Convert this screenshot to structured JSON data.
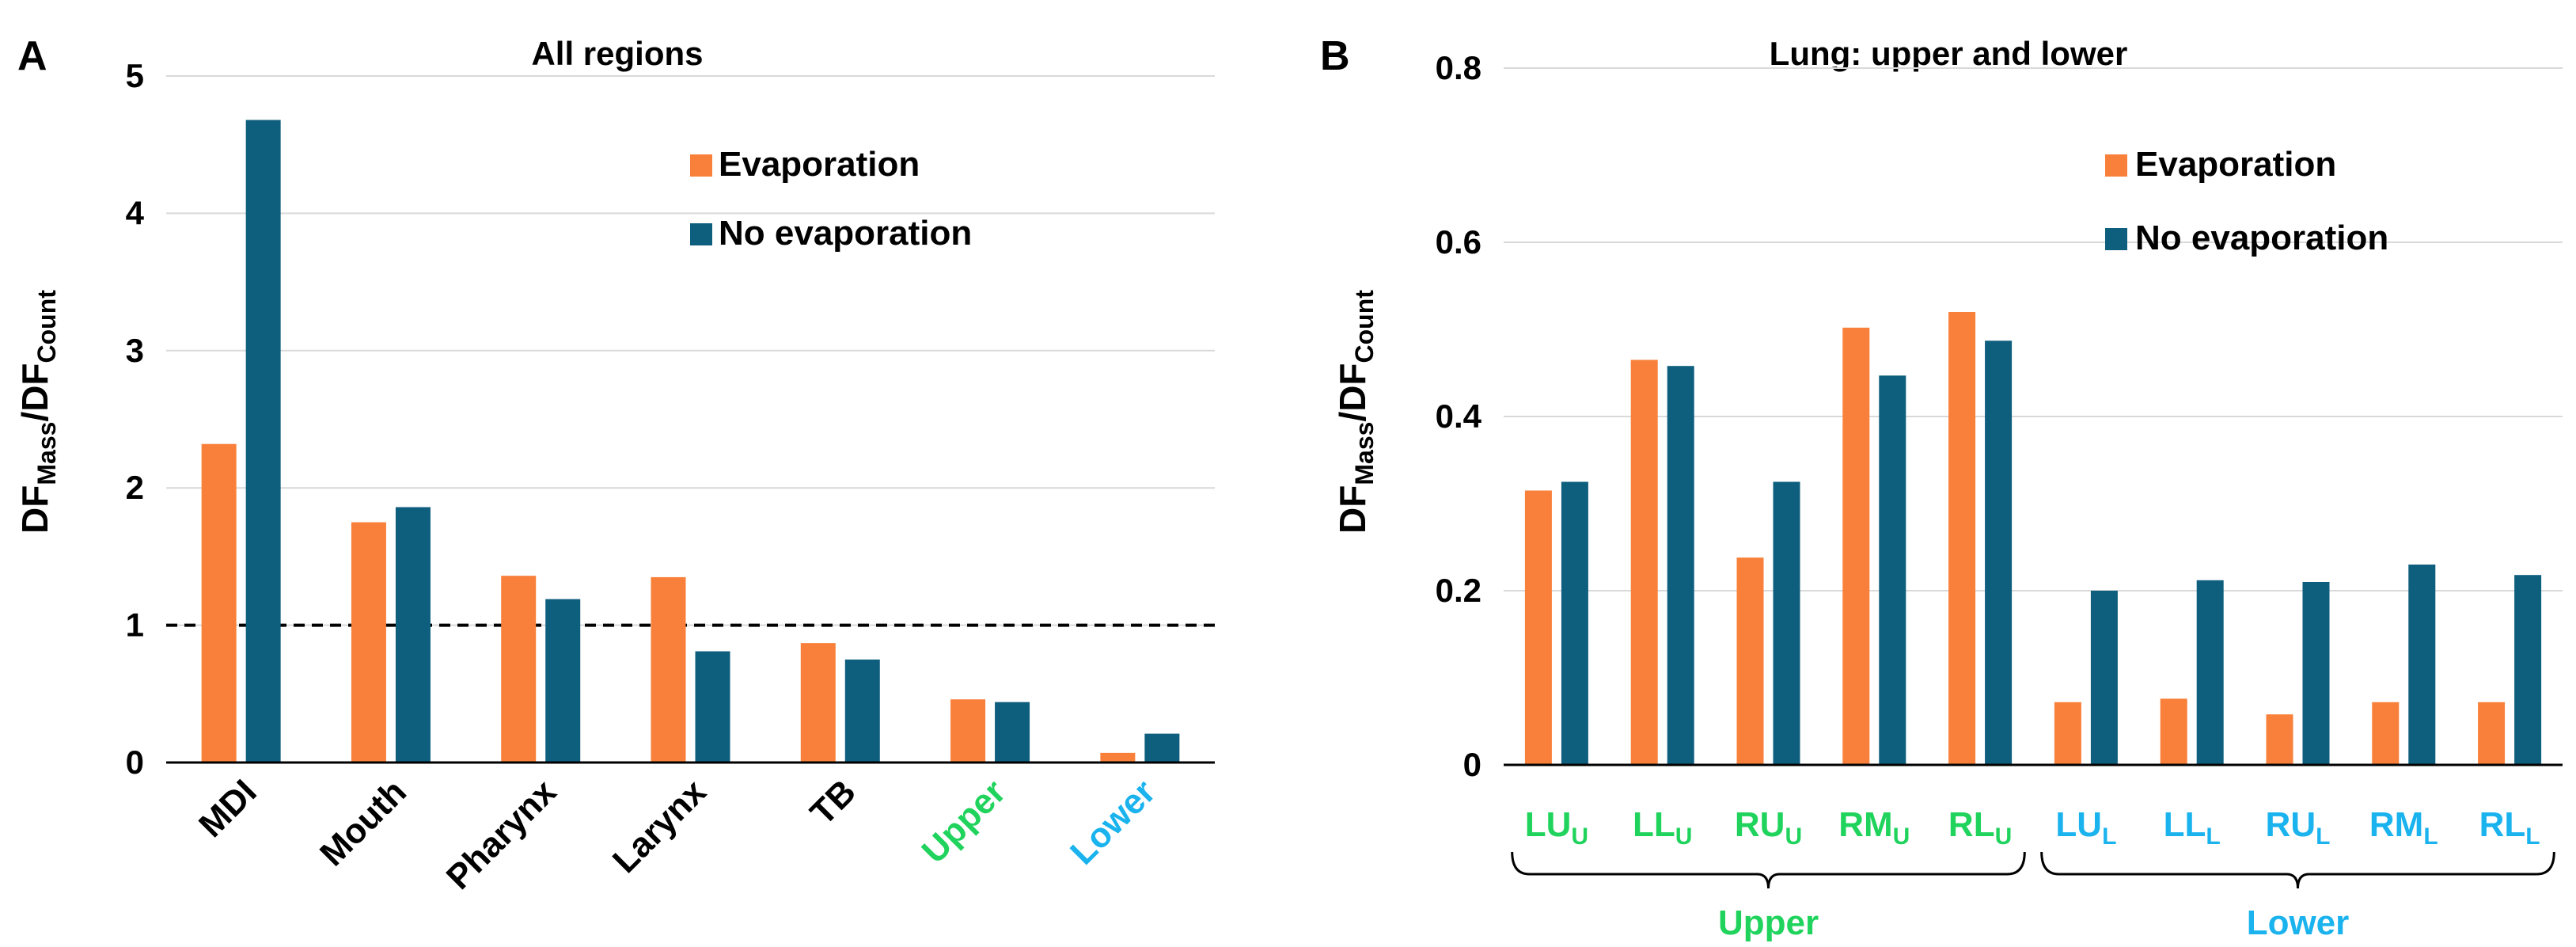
{
  "figure": {
    "panels": [
      "A",
      "B"
    ]
  },
  "colors": {
    "evaporation": "#f9803a",
    "no_evaporation": "#0e5e7e",
    "grid": "#d9d9d9",
    "upper_label": "#1fd35c",
    "lower_label": "#1ab3ee",
    "text": "#000000"
  },
  "chart_data": [
    {
      "panel": "A",
      "type": "bar",
      "title": "All regions",
      "ylabel_main": "DF",
      "ylabel_sub1": "Mass",
      "ylabel_sep": "/DF",
      "ylabel_sub2": "Count",
      "ylim": [
        0,
        5
      ],
      "yticks": [
        "0",
        "1",
        "2",
        "3",
        "4",
        "5"
      ],
      "grid": true,
      "reference_line": 1,
      "legend_position": "top-right",
      "categories": [
        "MDI",
        "Mouth",
        "Pharynx",
        "Larynx",
        "TB",
        "Upper",
        "Lower"
      ],
      "category_colors": [
        "text",
        "text",
        "text",
        "text",
        "text",
        "upper_label",
        "lower_label"
      ],
      "series": [
        {
          "name": "Evaporation",
          "values": [
            2.32,
            1.75,
            1.36,
            1.35,
            0.87,
            0.46,
            0.07
          ]
        },
        {
          "name": "No evaporation",
          "values": [
            4.68,
            1.86,
            1.19,
            0.81,
            0.75,
            0.44,
            0.21
          ]
        }
      ]
    },
    {
      "panel": "B",
      "type": "bar",
      "title": "Lung: upper and lower",
      "ylabel_main": "DF",
      "ylabel_sub1": "Mass",
      "ylabel_sep": "/DF",
      "ylabel_sub2": "Count",
      "ylim": [
        0,
        0.8
      ],
      "yticks": [
        "0",
        "0.2",
        "0.4",
        "0.6",
        "0.8"
      ],
      "grid": true,
      "legend_position": "top-right",
      "categories": [
        {
          "base": "LU",
          "sub": "U"
        },
        {
          "base": "LL",
          "sub": "U"
        },
        {
          "base": "RU",
          "sub": "U"
        },
        {
          "base": "RM",
          "sub": "U"
        },
        {
          "base": "RL",
          "sub": "U"
        },
        {
          "base": "LU",
          "sub": "L"
        },
        {
          "base": "LL",
          "sub": "L"
        },
        {
          "base": "RU",
          "sub": "L"
        },
        {
          "base": "RM",
          "sub": "L"
        },
        {
          "base": "RL",
          "sub": "L"
        }
      ],
      "category_colors": [
        "upper_label",
        "upper_label",
        "upper_label",
        "upper_label",
        "upper_label",
        "lower_label",
        "lower_label",
        "lower_label",
        "lower_label",
        "lower_label"
      ],
      "groups": [
        {
          "label": "Upper",
          "from": 0,
          "to": 4,
          "color": "upper_label"
        },
        {
          "label": "Lower",
          "from": 5,
          "to": 9,
          "color": "lower_label"
        }
      ],
      "series": [
        {
          "name": "Evaporation",
          "values": [
            0.315,
            0.465,
            0.238,
            0.502,
            0.52,
            0.072,
            0.076,
            0.058,
            0.072,
            0.072
          ]
        },
        {
          "name": "No evaporation",
          "values": [
            0.325,
            0.458,
            0.325,
            0.447,
            0.487,
            0.2,
            0.212,
            0.21,
            0.23,
            0.218
          ]
        }
      ]
    }
  ]
}
